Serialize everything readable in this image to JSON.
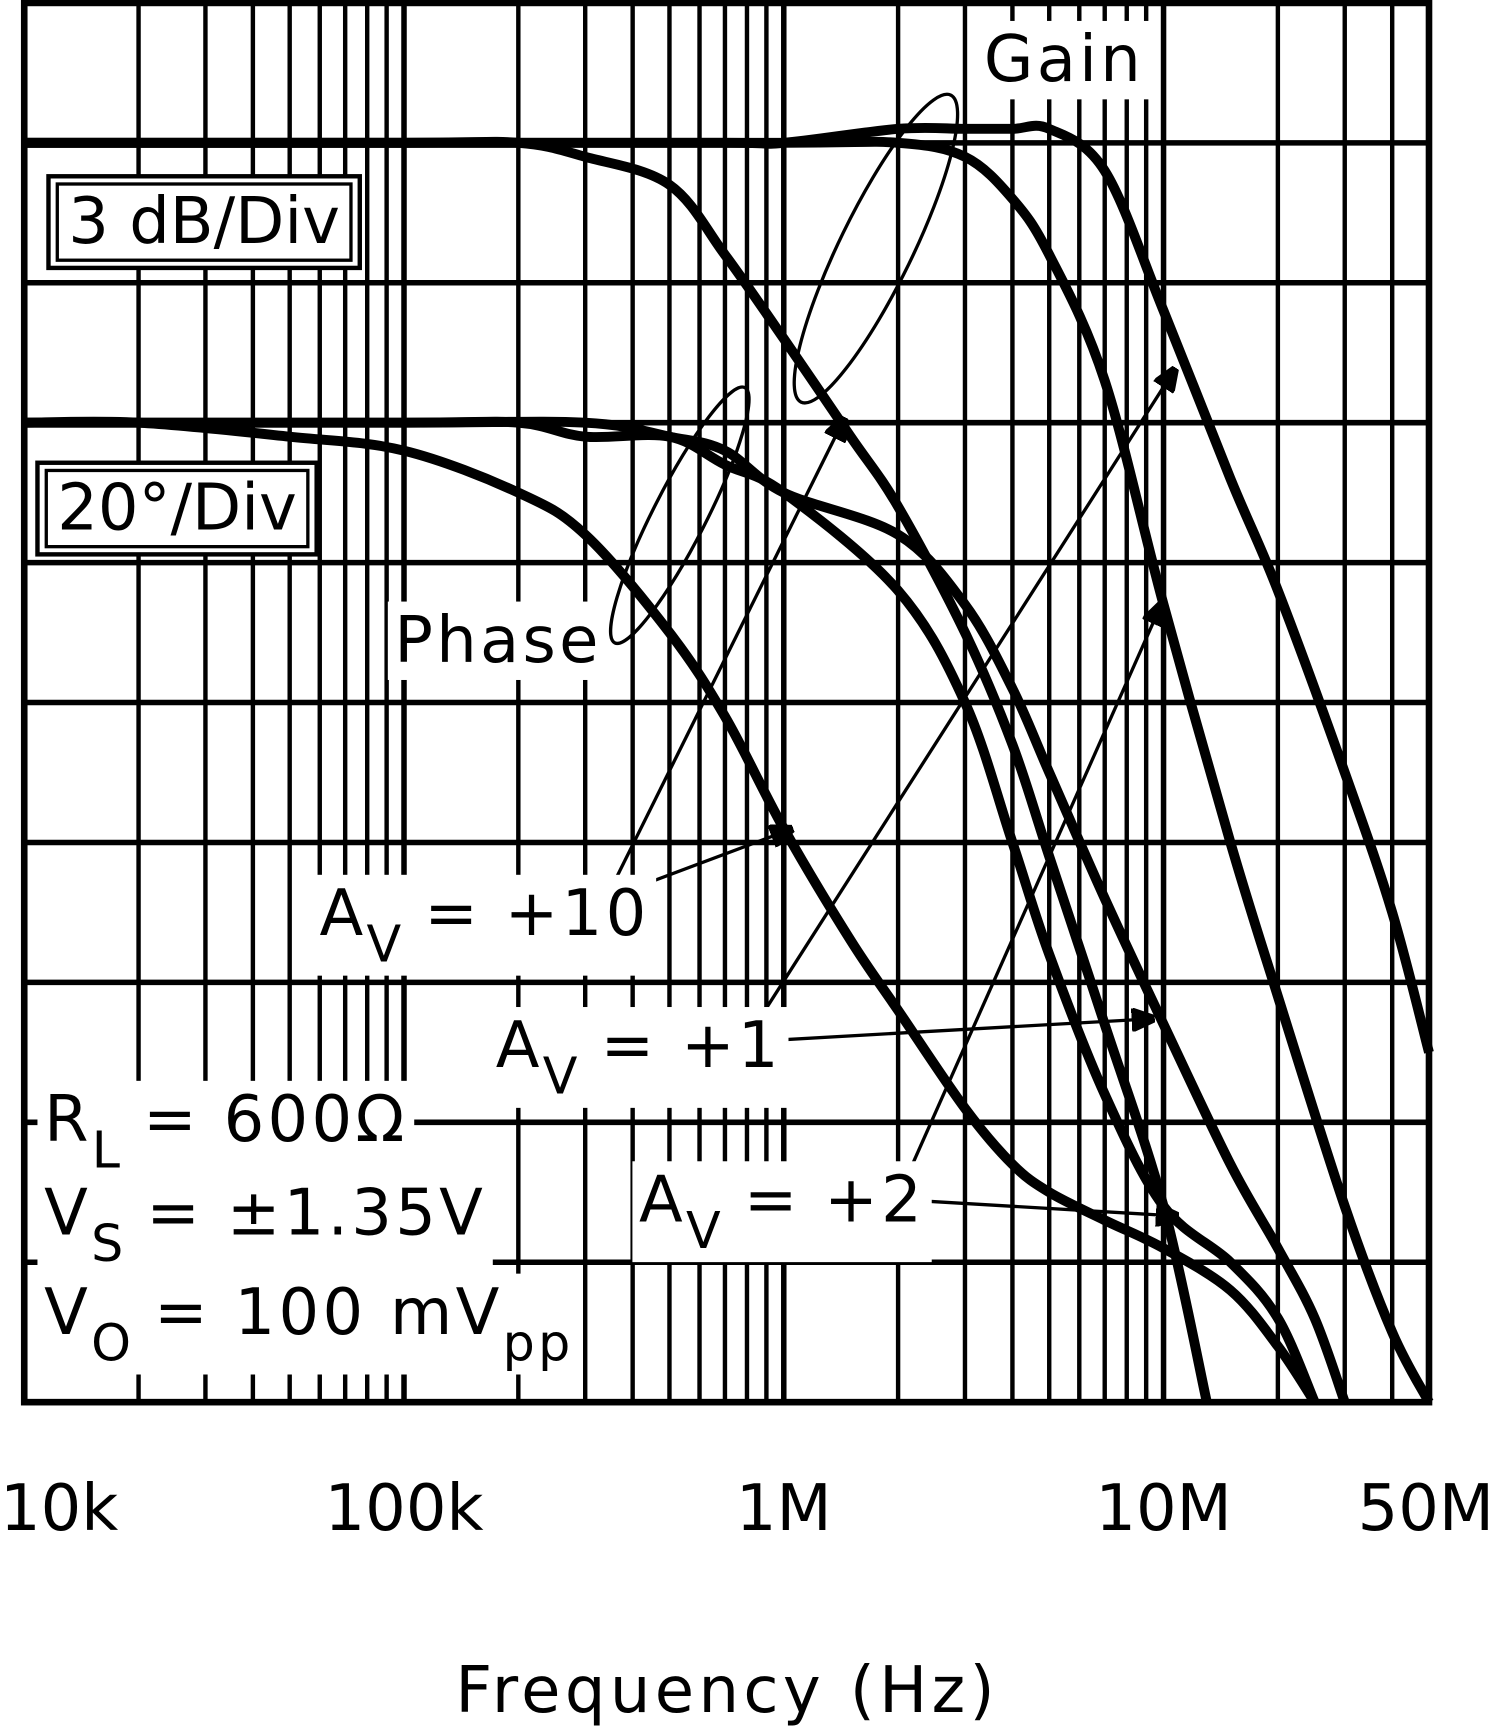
{
  "chart_data": {
    "type": "line",
    "x_label": "Frequency (Hz)",
    "xscale": "log",
    "xlim": [
      10000,
      50000000
    ],
    "xticks": [
      {
        "value": 10000,
        "label": "10k"
      },
      {
        "value": 100000,
        "label": "100k"
      },
      {
        "value": 1000000,
        "label": "1M"
      },
      {
        "value": 10000000,
        "label": "10M"
      },
      {
        "value": 50000000,
        "label": "50M"
      }
    ],
    "xminorticks": [
      20000,
      30000,
      40000,
      50000,
      60000,
      70000,
      80000,
      90000,
      200000,
      300000,
      400000,
      500000,
      600000,
      700000,
      800000,
      900000,
      2000000,
      3000000,
      4000000,
      5000000,
      6000000,
      7000000,
      8000000,
      9000000,
      20000000,
      30000000,
      40000000
    ],
    "ylim": [
      0,
      10
    ],
    "yticks": [
      0,
      1,
      2,
      3,
      4,
      5,
      6,
      7,
      8,
      9,
      10
    ],
    "grid": true,
    "series": [
      {
        "color": "#000000",
        "x": [
          10000,
          100000,
          200000,
          300000,
          500000,
          700000,
          1000000,
          1500000,
          2000000,
          3000000,
          4000000,
          5000000,
          7000000,
          10000000,
          13000000
        ],
        "values": [
          9.0,
          9.0,
          9.0,
          8.9,
          8.7,
          8.2,
          7.6,
          6.9,
          6.4,
          5.5,
          4.7,
          3.9,
          2.7,
          1.4,
          0
        ]
      },
      {
        "color": "#000000",
        "x": [
          10000,
          100000,
          1000000,
          2000000,
          3000000,
          4000000,
          5000000,
          7000000,
          10000000,
          15000000,
          20000000,
          30000000,
          40000000,
          50000000
        ],
        "values": [
          9.0,
          9.0,
          9.0,
          9.0,
          8.9,
          8.6,
          8.2,
          7.3,
          5.7,
          4.0,
          2.9,
          1.4,
          0.5,
          0
        ]
      },
      {
        "color": "#000000",
        "x": [
          10000,
          100000,
          700000,
          1000000,
          2000000,
          3000000,
          4000000,
          5000000,
          7000000,
          10000000,
          15000000,
          20000000,
          30000000,
          40000000,
          50000000
        ],
        "values": [
          9.0,
          9.0,
          9.0,
          9.0,
          9.1,
          9.1,
          9.1,
          9.1,
          8.8,
          7.8,
          6.6,
          5.8,
          4.5,
          3.5,
          2.5
        ]
      },
      {
        "color": "#000000",
        "x": [
          10000,
          20000,
          50000,
          100000,
          200000,
          300000,
          500000,
          700000,
          1000000,
          1500000,
          2000000,
          3000000,
          4000000,
          5000000,
          7000000,
          10000000,
          15000000,
          20000000,
          25000000
        ],
        "values": [
          7.0,
          7.0,
          6.9,
          6.8,
          6.5,
          6.2,
          5.5,
          4.9,
          4.1,
          3.3,
          2.8,
          2.1,
          1.7,
          1.5,
          1.3,
          1.1,
          0.8,
          0.4,
          0
        ]
      },
      {
        "color": "#000000",
        "x": [
          10000,
          100000,
          200000,
          300000,
          500000,
          700000,
          1000000,
          2000000,
          3000000,
          4000000,
          5000000,
          7000000,
          10000000,
          15000000,
          20000000,
          25000000
        ],
        "values": [
          7.0,
          7.0,
          7.0,
          6.9,
          6.9,
          6.7,
          6.5,
          5.8,
          5.0,
          4.0,
          3.2,
          2.2,
          1.4,
          1.0,
          0.6,
          0
        ]
      },
      {
        "color": "#000000",
        "x": [
          10000,
          100000,
          300000,
          500000,
          700000,
          1000000,
          2000000,
          3000000,
          4000000,
          5000000,
          7000000,
          10000000,
          15000000,
          20000000,
          25000000,
          30000000
        ],
        "values": [
          7.0,
          7.0,
          7.0,
          6.9,
          6.8,
          6.5,
          6.2,
          5.7,
          5.1,
          4.5,
          3.6,
          2.7,
          1.7,
          1.1,
          0.6,
          0
        ]
      }
    ],
    "annotations": {
      "gain": "Gain",
      "phase": "Phase",
      "gain_scale": "3 dB/Div",
      "phase_scale": "20°/Div",
      "av10": [
        {
          "t": "A"
        },
        {
          "t": "V",
          "sub": true
        },
        {
          "t": "= +10"
        }
      ],
      "av1": [
        {
          "t": "A"
        },
        {
          "t": "V",
          "sub": true
        },
        {
          "t": "= +1"
        }
      ],
      "av2": [
        {
          "t": "A"
        },
        {
          "t": "V",
          "sub": true
        },
        {
          "t": "= +2"
        }
      ]
    },
    "conditions": [
      [
        {
          "t": "R"
        },
        {
          "t": "L",
          "sub": true
        },
        {
          "t": "= 600Ω"
        }
      ],
      [
        {
          "t": "V"
        },
        {
          "t": "S",
          "sub": true
        },
        {
          "t": "= ±1.35V"
        }
      ],
      [
        {
          "t": "V"
        },
        {
          "t": "O",
          "sub": true
        },
        {
          "t": "= 100 mV"
        },
        {
          "t": "pp",
          "sub": true
        }
      ]
    ]
  }
}
